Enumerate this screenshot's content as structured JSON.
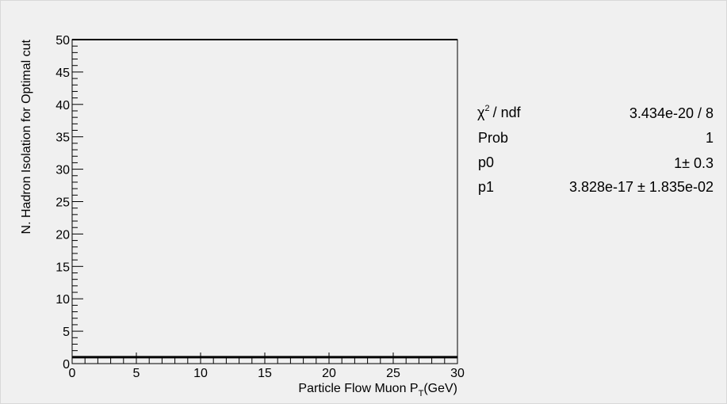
{
  "chart_data": {
    "type": "line",
    "xlabel_main": "Particle Flow Muon P",
    "xlabel_sub": "T",
    "xlabel_unit": "(GeV)",
    "ylabel": "N. Hadron Isolation for Optimal cut",
    "xlim": [
      0,
      30
    ],
    "ylim": [
      0,
      50
    ],
    "x_ticks": [
      "0",
      "5",
      "10",
      "15",
      "20",
      "25",
      "30"
    ],
    "y_ticks": [
      "0",
      "5",
      "10",
      "15",
      "20",
      "25",
      "30",
      "35",
      "40",
      "45",
      "50"
    ],
    "series": [
      {
        "x": [
          0,
          30
        ],
        "y": [
          1,
          1
        ]
      }
    ]
  },
  "stats": {
    "rows": [
      {
        "label": "/ ndf",
        "value": "3.434e-20 / 8"
      },
      {
        "label": "Prob",
        "value": "1"
      },
      {
        "label": "p0",
        "value": "1± 0.3"
      },
      {
        "label": "p1",
        "value": "3.828e-17 ± 1.835e-02"
      }
    ],
    "chi_symbol": "χ",
    "chi_exp": "2"
  }
}
